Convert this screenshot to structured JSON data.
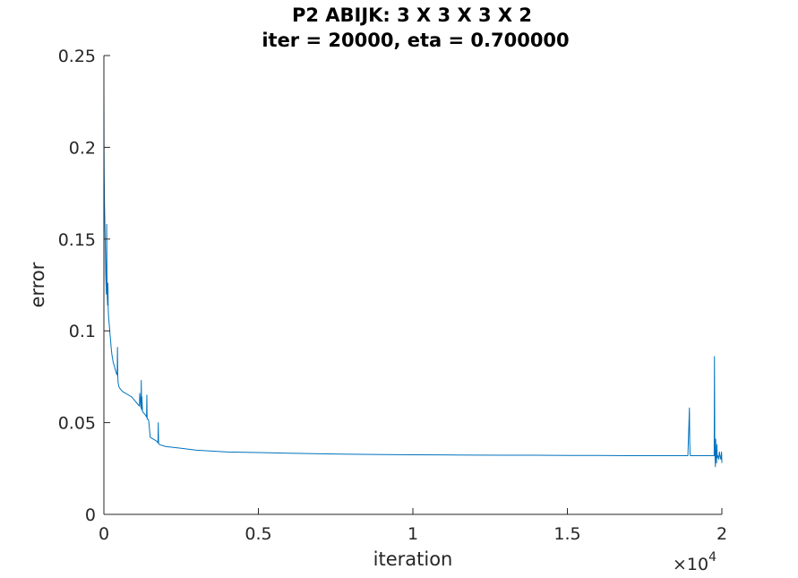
{
  "chart_data": {
    "type": "line",
    "title": "P2 ABIJK: 3 X 3 X 3 X 2",
    "subtitle": "iter = 20000, eta = 0.700000",
    "xlabel": "iteration",
    "ylabel": "error",
    "xlim": [
      0,
      20000
    ],
    "ylim": [
      0,
      0.25
    ],
    "x_ticks": [
      0,
      5000,
      10000,
      15000,
      20000
    ],
    "x_tick_labels": [
      "0",
      "0.5",
      "1",
      "1.5",
      "2"
    ],
    "x_exponent_label": "×10",
    "x_exponent_power": "4",
    "y_ticks": [
      0,
      0.05,
      0.1,
      0.15,
      0.2,
      0.25
    ],
    "y_tick_labels": [
      "0",
      "0.05",
      "0.1",
      "0.15",
      "0.2",
      "0.25"
    ],
    "grid": false,
    "series": [
      {
        "color": "#0072BD",
        "x": [
          0,
          5,
          10,
          20,
          30,
          40,
          50,
          60,
          70,
          80,
          90,
          100,
          110,
          120,
          130,
          140,
          150,
          160,
          170,
          180,
          200,
          220,
          240,
          260,
          280,
          300,
          350,
          400,
          430,
          440,
          450,
          460,
          480,
          500,
          600,
          700,
          800,
          900,
          1000,
          1100,
          1150,
          1160,
          1200,
          1210,
          1220,
          1230,
          1250,
          1300,
          1350,
          1380,
          1390,
          1400,
          1420,
          1450,
          1500,
          1600,
          1700,
          1750,
          1760,
          1770,
          1800,
          2000,
          2500,
          3000,
          4000,
          5000,
          6000,
          7000,
          8000,
          9000,
          10000,
          11000,
          12000,
          13000,
          14000,
          15000,
          16000,
          17000,
          18000,
          18900,
          18950,
          18960,
          18970,
          18980,
          19000,
          19500,
          19700,
          19750,
          19760,
          19770,
          19780,
          19790,
          19800,
          19810,
          19820,
          19830,
          19840,
          19850,
          19870,
          19900,
          19920,
          19950,
          19970,
          19990,
          20000
        ],
        "y": [
          0.233,
          0.2,
          0.185,
          0.17,
          0.16,
          0.15,
          0.14,
          0.13,
          0.125,
          0.12,
          0.158,
          0.13,
          0.118,
          0.114,
          0.126,
          0.112,
          0.108,
          0.106,
          0.104,
          0.102,
          0.098,
          0.094,
          0.09,
          0.087,
          0.085,
          0.083,
          0.08,
          0.077,
          0.076,
          0.091,
          0.075,
          0.072,
          0.07,
          0.069,
          0.067,
          0.066,
          0.065,
          0.064,
          0.062,
          0.06,
          0.059,
          0.066,
          0.058,
          0.073,
          0.057,
          0.064,
          0.056,
          0.055,
          0.054,
          0.053,
          0.065,
          0.052,
          0.052,
          0.051,
          0.042,
          0.041,
          0.04,
          0.039,
          0.05,
          0.039,
          0.038,
          0.037,
          0.036,
          0.035,
          0.034,
          0.0337,
          0.0333,
          0.033,
          0.0328,
          0.0326,
          0.0325,
          0.0324,
          0.0323,
          0.0322,
          0.0322,
          0.0321,
          0.0321,
          0.032,
          0.032,
          0.032,
          0.058,
          0.04,
          0.033,
          0.032,
          0.032,
          0.032,
          0.032,
          0.032,
          0.086,
          0.04,
          0.03,
          0.026,
          0.041,
          0.03,
          0.035,
          0.028,
          0.038,
          0.031,
          0.032,
          0.03,
          0.034,
          0.031,
          0.03,
          0.034,
          0.028
        ]
      }
    ]
  }
}
